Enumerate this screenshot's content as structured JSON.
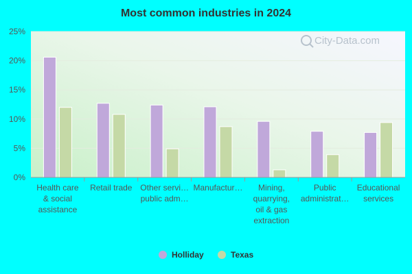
{
  "chart_data": {
    "type": "bar",
    "title": "Most common industries in 2024",
    "xlabel": "",
    "ylabel": "",
    "ylim": [
      0,
      25
    ],
    "yticks": [
      "0%",
      "5%",
      "10%",
      "15%",
      "20%",
      "25%"
    ],
    "ytick_values": [
      0,
      5,
      10,
      15,
      20,
      25
    ],
    "grid": true,
    "legend_position": "bottom",
    "watermark": "City-Data.com",
    "categories": [
      [
        "Health care",
        "& social",
        "assistance"
      ],
      [
        "Retail trade"
      ],
      [
        "Other servi…",
        "public adm…"
      ],
      [
        "Manufactur…"
      ],
      [
        "Mining,",
        "quarrying,",
        "oil & gas",
        "extraction"
      ],
      [
        "Public",
        "administrat…"
      ],
      [
        "Educational",
        "services"
      ]
    ],
    "series": [
      {
        "name": "Holliday",
        "color": "#c0a8da",
        "values": [
          20.6,
          12.7,
          12.4,
          12.1,
          9.6,
          7.9,
          7.7
        ]
      },
      {
        "name": "Texas",
        "color": "#c5d9a6",
        "values": [
          12.0,
          10.8,
          4.9,
          8.7,
          1.3,
          3.9,
          9.4
        ]
      }
    ]
  }
}
